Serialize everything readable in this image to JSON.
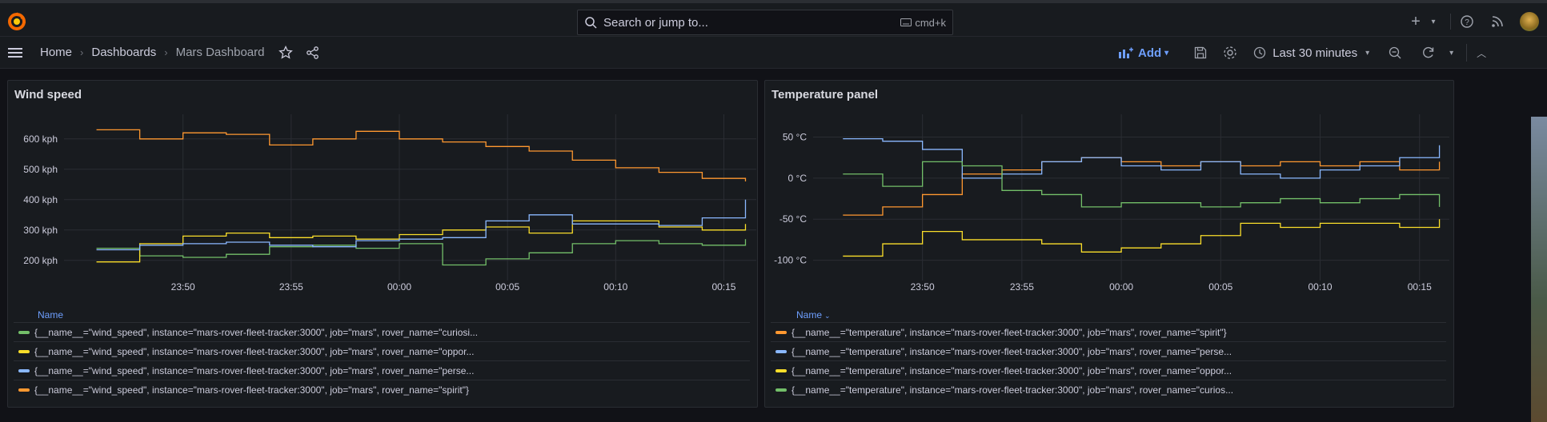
{
  "topbar": {
    "search_placeholder": "Search or jump to...",
    "shortcut": "cmd+k"
  },
  "nav": {
    "crumbs": [
      "Home",
      "Dashboards",
      "Mars Dashboard"
    ],
    "add_label": "Add",
    "time_range": "Last 30 minutes"
  },
  "colors": {
    "green": "#73bf69",
    "yellow": "#fade2a",
    "blue": "#8ab8ff",
    "orange": "#ff9830",
    "accent": "#6e9fff"
  },
  "panels": [
    {
      "title": "Wind speed",
      "legend_header": "Name",
      "legend": [
        {
          "color": "green",
          "label": "{__name__=\"wind_speed\", instance=\"mars-rover-fleet-tracker:3000\", job=\"mars\", rover_name=\"curiosi..."
        },
        {
          "color": "yellow",
          "label": "{__name__=\"wind_speed\", instance=\"mars-rover-fleet-tracker:3000\", job=\"mars\", rover_name=\"oppor..."
        },
        {
          "color": "blue",
          "label": "{__name__=\"wind_speed\", instance=\"mars-rover-fleet-tracker:3000\", job=\"mars\", rover_name=\"perse..."
        },
        {
          "color": "orange",
          "label": "{__name__=\"wind_speed\", instance=\"mars-rover-fleet-tracker:3000\", job=\"mars\", rover_name=\"spirit\"}"
        }
      ]
    },
    {
      "title": "Temperature panel",
      "legend_header": "Name",
      "legend": [
        {
          "color": "orange",
          "label": "{__name__=\"temperature\", instance=\"mars-rover-fleet-tracker:3000\", job=\"mars\", rover_name=\"spirit\"}"
        },
        {
          "color": "blue",
          "label": "{__name__=\"temperature\", instance=\"mars-rover-fleet-tracker:3000\", job=\"mars\", rover_name=\"perse..."
        },
        {
          "color": "yellow",
          "label": "{__name__=\"temperature\", instance=\"mars-rover-fleet-tracker:3000\", job=\"mars\", rover_name=\"oppor..."
        },
        {
          "color": "green",
          "label": "{__name__=\"temperature\", instance=\"mars-rover-fleet-tracker:3000\", job=\"mars\", rover_name=\"curios..."
        }
      ]
    }
  ],
  "chart_data": [
    {
      "type": "line",
      "title": "Wind speed",
      "x_ticks": [
        "23:50",
        "23:55",
        "00:00",
        "00:05",
        "00:10",
        "00:15"
      ],
      "y_ticks": [
        "200 kph",
        "300 kph",
        "400 kph",
        "500 kph",
        "600 kph"
      ],
      "y_tick_values": [
        200,
        300,
        400,
        500,
        600
      ],
      "ylim": [
        160,
        660
      ],
      "x_minutes_range": [
        -15.5,
        16.5
      ],
      "x_tick_minutes": [
        -10,
        -5,
        0,
        5,
        10,
        15
      ],
      "grid": true,
      "series": [
        {
          "color": "green",
          "x": [
            -14,
            -12,
            -10,
            -8,
            -6,
            -4,
            -2,
            0,
            2,
            4,
            6,
            8,
            10,
            12,
            14,
            16
          ],
          "y": [
            240,
            215,
            210,
            220,
            245,
            250,
            240,
            255,
            185,
            205,
            225,
            255,
            265,
            255,
            250,
            270
          ]
        },
        {
          "color": "yellow",
          "x": [
            -14,
            -12,
            -10,
            -8,
            -6,
            -4,
            -2,
            0,
            2,
            4,
            6,
            8,
            10,
            12,
            14,
            16
          ],
          "y": [
            195,
            255,
            280,
            290,
            275,
            280,
            270,
            285,
            300,
            310,
            290,
            330,
            330,
            310,
            300,
            320
          ]
        },
        {
          "color": "blue",
          "x": [
            -14,
            -12,
            -10,
            -8,
            -6,
            -4,
            -2,
            0,
            2,
            4,
            6,
            8,
            10,
            12,
            14,
            16
          ],
          "y": [
            235,
            250,
            255,
            260,
            250,
            245,
            265,
            270,
            275,
            330,
            350,
            320,
            320,
            315,
            340,
            400
          ]
        },
        {
          "color": "orange",
          "x": [
            -14,
            -12,
            -10,
            -8,
            -6,
            -4,
            -2,
            0,
            2,
            4,
            6,
            8,
            10,
            12,
            14,
            16
          ],
          "y": [
            630,
            600,
            620,
            615,
            580,
            600,
            625,
            600,
            590,
            575,
            560,
            530,
            505,
            490,
            470,
            460
          ]
        }
      ]
    },
    {
      "type": "line",
      "title": "Temperature panel",
      "x_ticks": [
        "23:50",
        "23:55",
        "00:00",
        "00:05",
        "00:10",
        "00:15"
      ],
      "y_ticks": [
        "50 °C",
        "0 °C",
        "-50 °C",
        "-100 °C"
      ],
      "y_tick_values": [
        50,
        0,
        -50,
        -100
      ],
      "ylim": [
        -115,
        70
      ],
      "x_minutes_range": [
        -15.5,
        16.5
      ],
      "x_tick_minutes": [
        -10,
        -5,
        0,
        5,
        10,
        15
      ],
      "grid": true,
      "series": [
        {
          "color": "orange",
          "x": [
            -14,
            -12,
            -10,
            -8,
            -6,
            -4,
            -2,
            0,
            2,
            4,
            6,
            8,
            10,
            12,
            14,
            16
          ],
          "y": [
            -45,
            -35,
            -20,
            5,
            10,
            20,
            25,
            20,
            15,
            20,
            15,
            20,
            15,
            20,
            10,
            20
          ]
        },
        {
          "color": "blue",
          "x": [
            -14,
            -12,
            -10,
            -8,
            -6,
            -4,
            -2,
            0,
            2,
            4,
            6,
            8,
            10,
            12,
            14,
            16
          ],
          "y": [
            48,
            45,
            35,
            0,
            5,
            20,
            25,
            15,
            10,
            20,
            5,
            0,
            10,
            15,
            25,
            40
          ]
        },
        {
          "color": "yellow",
          "x": [
            -14,
            -12,
            -10,
            -8,
            -6,
            -4,
            -2,
            0,
            2,
            4,
            6,
            8,
            10,
            12,
            14,
            16
          ],
          "y": [
            -95,
            -80,
            -65,
            -75,
            -75,
            -80,
            -90,
            -85,
            -80,
            -70,
            -55,
            -60,
            -55,
            -55,
            -60,
            -50
          ]
        },
        {
          "color": "green",
          "x": [
            -14,
            -12,
            -10,
            -8,
            -6,
            -4,
            -2,
            0,
            2,
            4,
            6,
            8,
            10,
            12,
            14,
            16
          ],
          "y": [
            5,
            -10,
            20,
            15,
            -15,
            -20,
            -35,
            -30,
            -30,
            -35,
            -30,
            -25,
            -30,
            -25,
            -20,
            -35
          ]
        }
      ]
    }
  ]
}
